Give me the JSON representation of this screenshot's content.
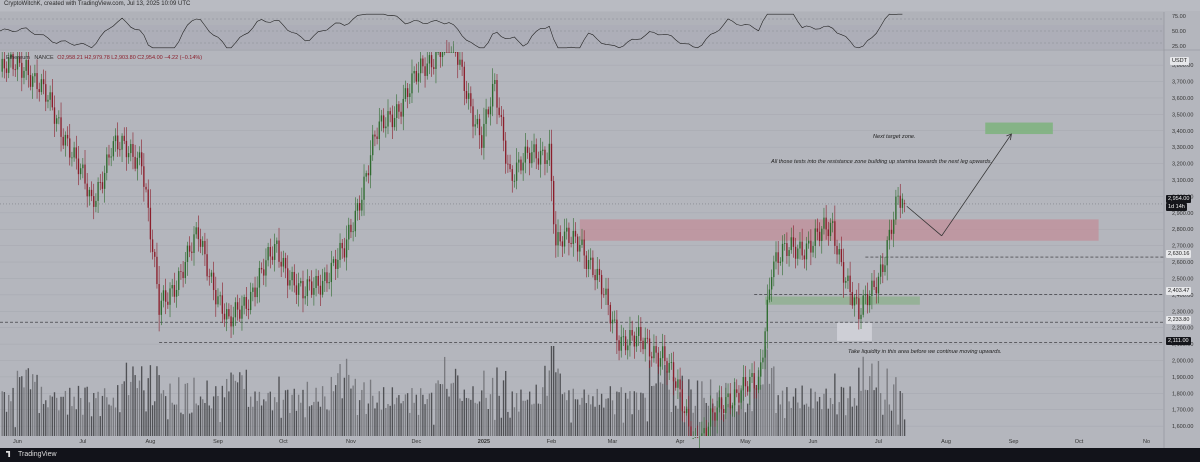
{
  "header": {
    "caption": "CryptoWitchK, created with TradingView.com, Jul 13, 2025 10:09 UTC"
  },
  "legend": {
    "symbol": "Ethereum",
    "exchange": "NANCE",
    "ohlc": "O2,958.21 H2,979.78 L2,903.80 C2,954.00 −4.22 (−0.14%)"
  },
  "colors": {
    "background": "#b4b6bd",
    "bull": "#2e6b2e",
    "bear": "#8b1e2b",
    "volume": "#5a5a5e",
    "resistance_zone": "#c28e99",
    "support_zone": "#8fb08f",
    "target_zone": "#7fb27f"
  },
  "price_axis": {
    "currency": "USDT",
    "ticks": [
      "3,800.00",
      "3,700.00",
      "3,600.00",
      "3,500.00",
      "3,400.00",
      "3,300.00",
      "3,200.00",
      "3,100.00",
      "3,000.00",
      "2,900.00",
      "2,800.00",
      "2,700.00",
      "2,600.00",
      "2,500.00",
      "2,400.00",
      "2,300.00",
      "2,200.00",
      "2,100.00",
      "2,000.00",
      "1,900.00",
      "1,800.00",
      "1,700.00",
      "1,600.00"
    ],
    "current_price": "2,954.00",
    "countdown": "1d 14h",
    "levels": [
      "2,630.16",
      "2,403.47",
      "2,233.80",
      "2,111.00"
    ]
  },
  "rsi_axis": {
    "ticks": [
      "75.00",
      "50.00",
      "25.00"
    ]
  },
  "time_axis": [
    "Jun",
    "Jul",
    "Aug",
    "Sep",
    "Oct",
    "Nov",
    "Dec",
    "2025",
    "Feb",
    "Mar",
    "Apr",
    "May",
    "Jun",
    "Jul",
    "Aug",
    "Sep",
    "Oct",
    "No"
  ],
  "annotations": {
    "target": "Next target zone.",
    "tests": "All those tests into the resistance zone building up stamina towards the next leg upwards.",
    "liquidity": "Take liquidity in this area before we continue moving upwards."
  },
  "footer": {
    "brand": "TradingView"
  },
  "chart_data": {
    "type": "candlestick",
    "title": "Ethereum",
    "interval": "1D",
    "ylabel": "USDT",
    "ylim": [
      1540,
      3880
    ],
    "x_range": [
      "2024-05-24",
      "2025-11-09"
    ],
    "anchors": [
      {
        "date": "2024-05-24",
        "close": 3760
      },
      {
        "date": "2024-06-05",
        "close": 3810
      },
      {
        "date": "2024-06-24",
        "close": 3350
      },
      {
        "date": "2024-07-05",
        "close": 2950
      },
      {
        "date": "2024-07-14",
        "close": 3300
      },
      {
        "date": "2024-07-28",
        "close": 3250
      },
      {
        "date": "2024-08-05",
        "close": 2300
      },
      {
        "date": "2024-08-23",
        "close": 2750
      },
      {
        "date": "2024-09-06",
        "close": 2200
      },
      {
        "date": "2024-09-28",
        "close": 2680
      },
      {
        "date": "2024-10-10",
        "close": 2380
      },
      {
        "date": "2024-10-29",
        "close": 2650
      },
      {
        "date": "2024-11-12",
        "close": 3350
      },
      {
        "date": "2024-12-16",
        "close": 4000
      },
      {
        "date": "2024-12-31",
        "close": 3350
      },
      {
        "date": "2025-01-06",
        "close": 3650
      },
      {
        "date": "2025-01-13",
        "close": 3150
      },
      {
        "date": "2025-01-31",
        "close": 3300
      },
      {
        "date": "2025-02-03",
        "close": 2700
      },
      {
        "date": "2025-02-14",
        "close": 2750
      },
      {
        "date": "2025-03-04",
        "close": 2150
      },
      {
        "date": "2025-03-24",
        "close": 2050
      },
      {
        "date": "2025-04-09",
        "close": 1480
      },
      {
        "date": "2025-04-23",
        "close": 1790
      },
      {
        "date": "2025-05-07",
        "close": 1850
      },
      {
        "date": "2025-05-13",
        "close": 2600
      },
      {
        "date": "2025-06-10",
        "close": 2800
      },
      {
        "date": "2025-06-22",
        "close": 2250
      },
      {
        "date": "2025-07-03",
        "close": 2600
      },
      {
        "date": "2025-07-10",
        "close": 2954
      }
    ],
    "last_candle": {
      "date": "2025-07-13",
      "open": 2958.21,
      "high": 2979.78,
      "low": 2903.8,
      "close": 2954.0,
      "change": -4.22,
      "change_pct": -0.14
    },
    "zones": [
      {
        "name": "resistance",
        "from": "2025-02-14",
        "to": "2025-10-10",
        "low": 2730,
        "high": 2860
      },
      {
        "name": "support",
        "from": "2025-05-10",
        "to": "2025-07-20",
        "low": 2340,
        "high": 2390
      },
      {
        "name": "liquidity",
        "from": "2025-06-12",
        "to": "2025-06-28",
        "low": 2120,
        "high": 2230
      },
      {
        "name": "target",
        "from": "2025-08-19",
        "to": "2025-09-19",
        "low": 3380,
        "high": 3450
      }
    ],
    "horizontal_levels": [
      2630.16,
      2403.47,
      2233.8,
      2111.0
    ],
    "projection": [
      {
        "date": "2025-07-14",
        "price": 2940
      },
      {
        "date": "2025-07-30",
        "price": 2760
      },
      {
        "date": "2025-08-31",
        "price": 3380
      }
    ],
    "rsi": {
      "ylim": [
        20,
        80
      ],
      "levels": [
        70,
        50,
        30
      ]
    },
    "grid": true,
    "legend_position": "top-left"
  }
}
